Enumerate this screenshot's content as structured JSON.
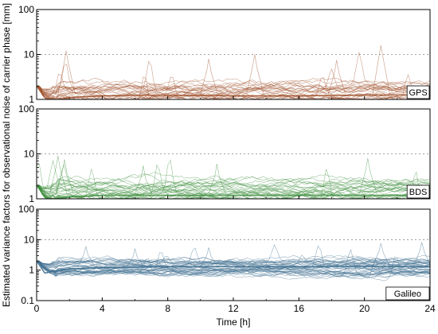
{
  "chart_data": {
    "type": "line",
    "title": "",
    "ylabel": "Estimated variance factors for observational noise of carrier phase [mm]",
    "xlabel": "Time [h]",
    "x_ticks": [
      0,
      4,
      8,
      12,
      16,
      20,
      24
    ],
    "xlim": [
      0,
      24
    ],
    "y_scale": "log",
    "grid": false,
    "reference_line": {
      "y": 10,
      "style": "dotted"
    },
    "panels": [
      {
        "label": "GPS",
        "color": "#a0522d",
        "ylim": [
          1,
          100
        ],
        "y_ticks": [
          1,
          10,
          100
        ],
        "series_count": 30,
        "start_value": 2.0,
        "typical_range": [
          0.5,
          4
        ],
        "peak_max": 16,
        "mean_curve": {
          "x": [
            0,
            0.5,
            1,
            2,
            4,
            8,
            12,
            16,
            20,
            24
          ],
          "y": [
            2.0,
            1.1,
            0.95,
            1.1,
            1.2,
            1.25,
            1.2,
            1.2,
            1.25,
            1.25
          ]
        },
        "notable_peaks": [
          {
            "x": 1.8,
            "y": 12
          },
          {
            "x": 10.5,
            "y": 8
          },
          {
            "x": 13.3,
            "y": 10
          },
          {
            "x": 18.3,
            "y": 7.5
          },
          {
            "x": 21.0,
            "y": 16
          }
        ]
      },
      {
        "label": "BDS",
        "color": "#3f8f3f",
        "ylim": [
          1,
          100
        ],
        "y_ticks": [
          1,
          10,
          100
        ],
        "series_count": 40,
        "start_value": 2.0,
        "typical_range": [
          0.5,
          4
        ],
        "peak_max": 10,
        "mean_curve": {
          "x": [
            0,
            0.5,
            1,
            2,
            4,
            8,
            12,
            16,
            20,
            24
          ],
          "y": [
            2.0,
            1.1,
            1.0,
            1.1,
            1.2,
            1.2,
            1.2,
            1.2,
            1.2,
            1.2
          ]
        },
        "notable_peaks": [
          {
            "x": 1.3,
            "y": 9
          },
          {
            "x": 1.7,
            "y": 7.5
          },
          {
            "x": 6.5,
            "y": 5.5
          },
          {
            "x": 11.0,
            "y": 6
          },
          {
            "x": 20.2,
            "y": 8
          }
        ]
      },
      {
        "label": "Galileo",
        "color": "#3f6f8f",
        "ylim": [
          0.1,
          100
        ],
        "y_ticks": [
          0.1,
          1,
          10,
          100
        ],
        "series_count": 40,
        "start_value": 2.0,
        "typical_range": [
          0.4,
          4
        ],
        "peak_max": 8,
        "mean_curve": {
          "x": [
            0,
            0.5,
            1,
            2,
            4,
            8,
            12,
            16,
            20,
            24
          ],
          "y": [
            2.0,
            0.8,
            0.9,
            1.1,
            1.2,
            1.3,
            1.3,
            1.3,
            1.3,
            1.3
          ]
        },
        "notable_peaks": [
          {
            "x": 3.0,
            "y": 6
          },
          {
            "x": 6.0,
            "y": 5
          },
          {
            "x": 10.5,
            "y": 5.5
          },
          {
            "x": 21.0,
            "y": 7.5
          },
          {
            "x": 23.5,
            "y": 8
          }
        ]
      }
    ]
  }
}
